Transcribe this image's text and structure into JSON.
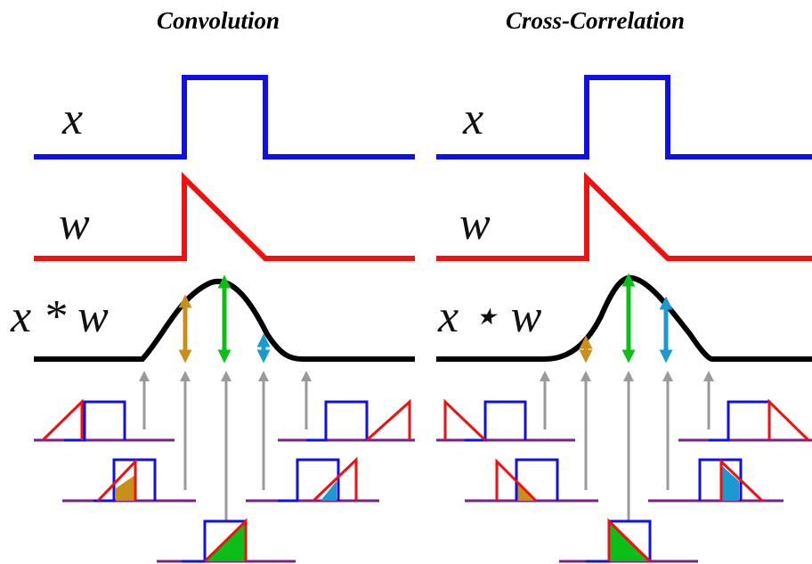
{
  "panels": [
    {
      "title": "Convolution",
      "x_label": "x",
      "w_label": "w",
      "result_label": "x * w",
      "operator": "*"
    },
    {
      "title": "Cross-Correlation",
      "x_label": "x",
      "w_label": "w",
      "result_label": "x ⋆ w",
      "operator": "⋆"
    }
  ],
  "colors": {
    "x_signal": "#1010e6",
    "w_signal": "#f01010",
    "result": "#000000",
    "overlap_fill_orange": "#c8901a",
    "overlap_fill_green": "#0cbf18",
    "overlap_fill_cyan": "#1a9ad0",
    "baseline": "#7a1f8a",
    "guide_arrow": "#9a9a9a"
  }
}
